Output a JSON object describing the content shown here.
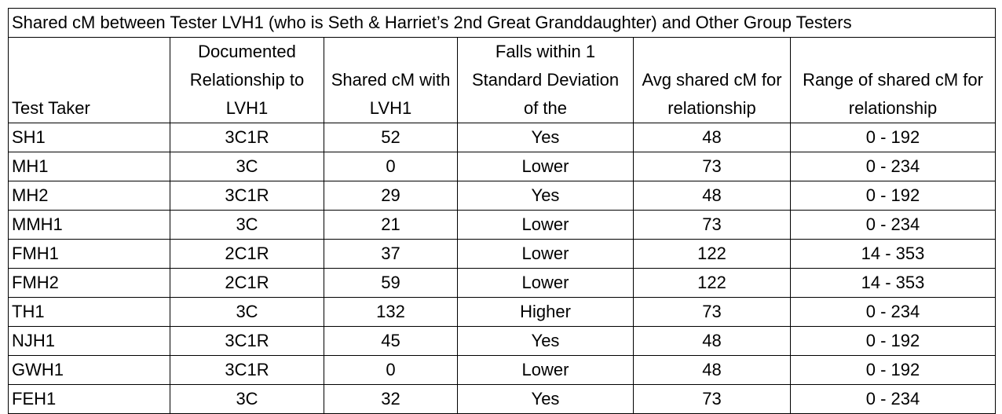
{
  "table": {
    "title": "Shared cM between Tester LVH1 (who is Seth & Harriet’s 2nd Great Granddaughter) and Other Group Testers",
    "headers": [
      "Test Taker",
      "Documented Relationship to LVH1",
      "Shared cM with LVH1",
      "Falls within 1 Standard Deviation of the",
      "Avg shared cM for relationship",
      "Range of shared cM for relationship"
    ],
    "rows": [
      [
        "SH1",
        "3C1R",
        "52",
        "Yes",
        "48",
        "0 - 192"
      ],
      [
        "MH1",
        "3C",
        "0",
        "Lower",
        "73",
        "0 - 234"
      ],
      [
        "MH2",
        "3C1R",
        "29",
        "Yes",
        "48",
        "0 - 192"
      ],
      [
        "MMH1",
        "3C",
        "21",
        "Lower",
        "73",
        "0 - 234"
      ],
      [
        "FMH1",
        "2C1R",
        "37",
        "Lower",
        "122",
        "14 - 353"
      ],
      [
        "FMH2",
        "2C1R",
        "59",
        "Lower",
        "122",
        "14 - 353"
      ],
      [
        "TH1",
        "3C",
        "132",
        "Higher",
        "73",
        "0 - 234"
      ],
      [
        "NJH1",
        "3C1R",
        "45",
        "Yes",
        "48",
        "0 - 192"
      ],
      [
        "GWH1",
        "3C1R",
        "0",
        "Lower",
        "48",
        "0 - 192"
      ],
      [
        "FEH1",
        "3C",
        "32",
        "Yes",
        "73",
        "0 - 234"
      ]
    ]
  }
}
